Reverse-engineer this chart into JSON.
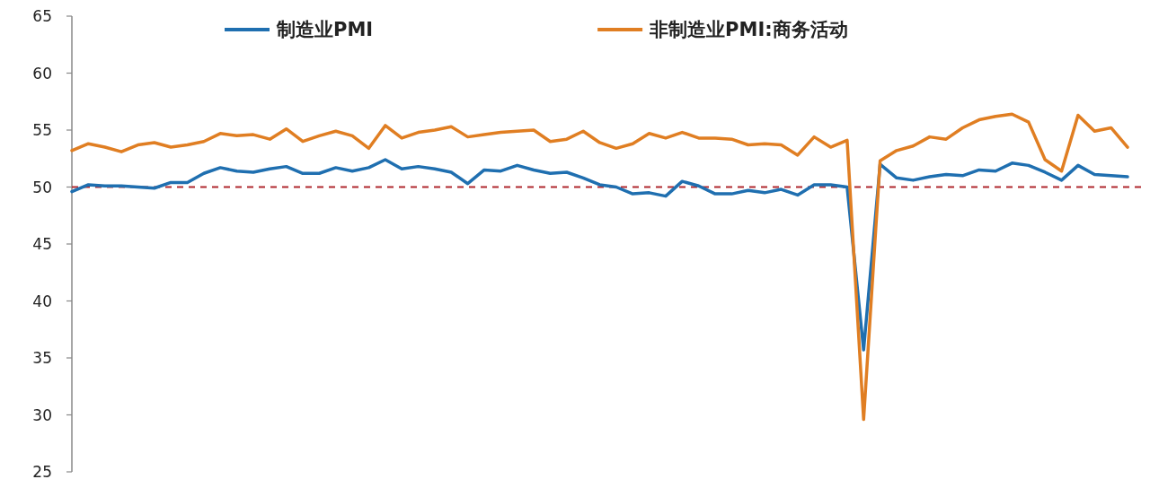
{
  "chart_data": {
    "type": "line",
    "categories": [
      null,
      null,
      null,
      null,
      null,
      null,
      null,
      null,
      null,
      null,
      null,
      null,
      null,
      null,
      null,
      null,
      null,
      null,
      null,
      null,
      null,
      null,
      null,
      null,
      null,
      null,
      null,
      null,
      null,
      null,
      null,
      null,
      null,
      null,
      null,
      null,
      null,
      null,
      null,
      null,
      null,
      null,
      null,
      null,
      null,
      null,
      null,
      null,
      null,
      null,
      null,
      null,
      null,
      null,
      null,
      null,
      null,
      null,
      null,
      null,
      null,
      null,
      null,
      null,
      null
    ],
    "series": [
      {
        "name": "制造业PMI",
        "color": "#1f6fb0",
        "values": [
          49.6,
          50.2,
          50.1,
          50.1,
          50.0,
          49.9,
          50.4,
          50.4,
          51.2,
          51.7,
          51.4,
          51.3,
          51.6,
          51.8,
          51.2,
          51.2,
          51.7,
          51.4,
          51.7,
          52.4,
          51.6,
          51.8,
          51.6,
          51.3,
          50.3,
          51.5,
          51.4,
          51.9,
          51.5,
          51.2,
          51.3,
          50.8,
          50.2,
          50.0,
          49.4,
          49.5,
          49.2,
          50.5,
          50.1,
          49.4,
          49.4,
          49.7,
          49.5,
          49.8,
          49.3,
          50.2,
          50.2,
          50.0,
          35.7,
          52.0,
          50.8,
          50.6,
          50.9,
          51.1,
          51.0,
          51.5,
          51.4,
          52.1,
          51.9,
          51.3,
          50.6,
          51.9,
          51.1,
          51.0,
          50.9
        ]
      },
      {
        "name": "非制造业PMI:商务活动",
        "color": "#e07e22",
        "values": [
          53.2,
          53.8,
          53.5,
          53.1,
          53.7,
          53.9,
          53.5,
          53.7,
          54.0,
          54.7,
          54.5,
          54.6,
          54.2,
          55.1,
          54.0,
          54.5,
          54.9,
          54.5,
          53.4,
          55.4,
          54.3,
          54.8,
          55.0,
          55.3,
          54.4,
          54.6,
          54.8,
          54.9,
          55.0,
          54.0,
          54.2,
          54.9,
          53.9,
          53.4,
          53.8,
          54.7,
          54.3,
          54.8,
          54.3,
          54.3,
          54.2,
          53.7,
          53.8,
          53.7,
          52.8,
          54.4,
          53.5,
          54.1,
          29.6,
          52.3,
          53.2,
          53.6,
          54.4,
          54.2,
          55.2,
          55.9,
          56.2,
          56.4,
          55.7,
          52.4,
          51.4,
          56.3,
          54.9,
          55.2,
          53.5
        ]
      }
    ],
    "ylim": [
      25,
      65
    ],
    "yticks": [
      25,
      30,
      35,
      40,
      45,
      50,
      55,
      60,
      65
    ],
    "ref_lines": [
      {
        "axis": "y",
        "value": 50,
        "color": "#b0282e",
        "line_style": "dashed"
      }
    ],
    "legend": "top",
    "tick_labels": "y"
  }
}
